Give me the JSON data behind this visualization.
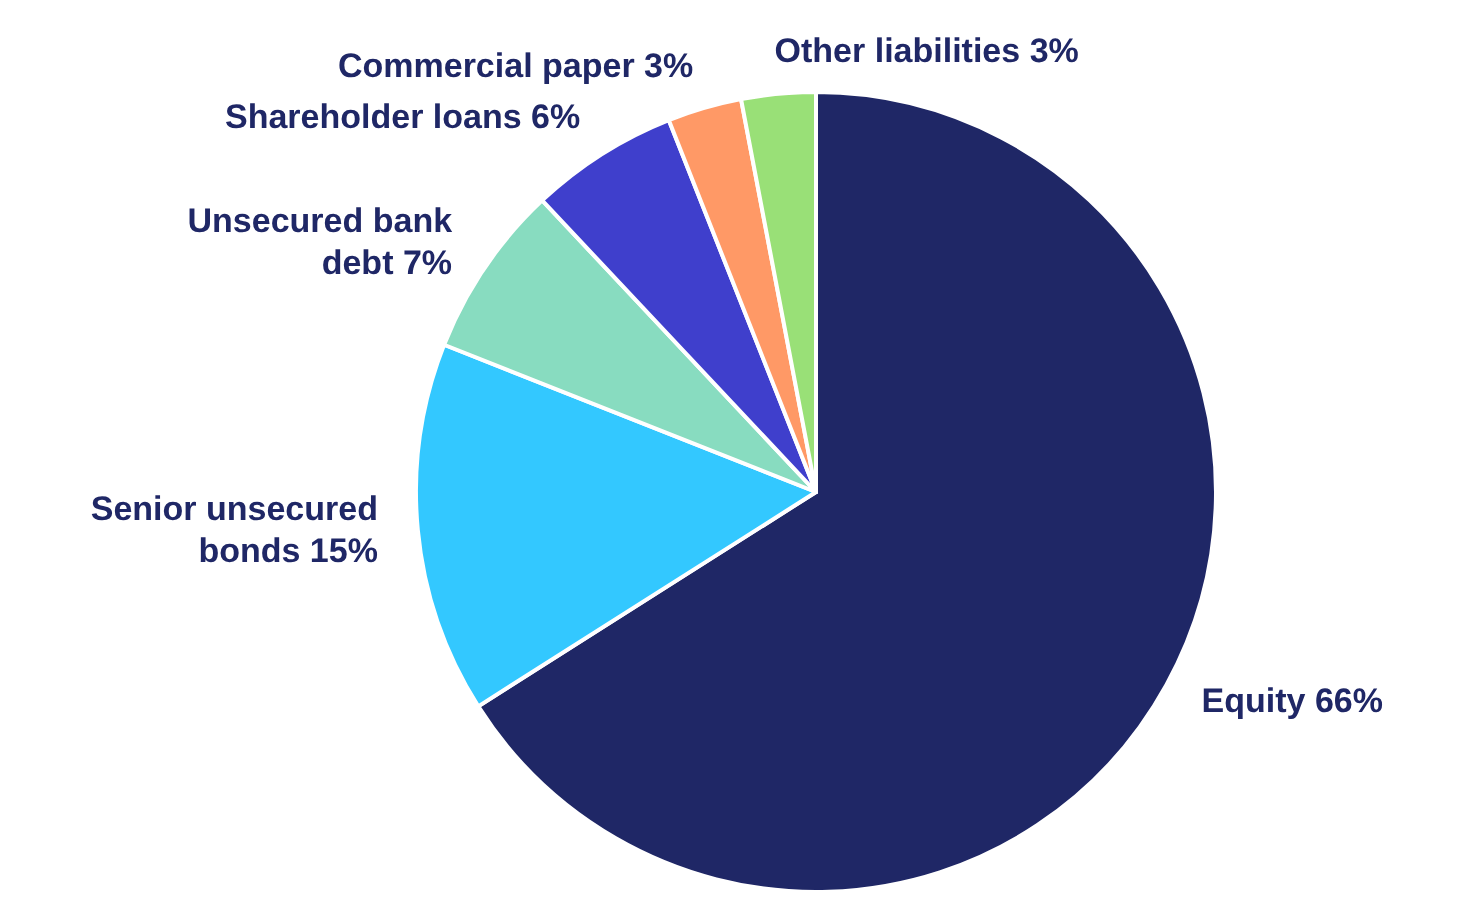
{
  "chart_data": {
    "type": "pie",
    "categories": [
      "Equity",
      "Senior unsecured bonds",
      "Unsecured bank debt",
      "Shareholder loans",
      "Commercial paper",
      "Other liabilities"
    ],
    "values": [
      66,
      15,
      7,
      6,
      3,
      3
    ],
    "value_labels": [
      "66%",
      "15%",
      "7%",
      "6%",
      "3%",
      "3%"
    ],
    "colors": [
      "#1f2766",
      "#33c8ff",
      "#88dcc0",
      "#3f3fcc",
      "#ff9966",
      "#99e077"
    ]
  }
}
